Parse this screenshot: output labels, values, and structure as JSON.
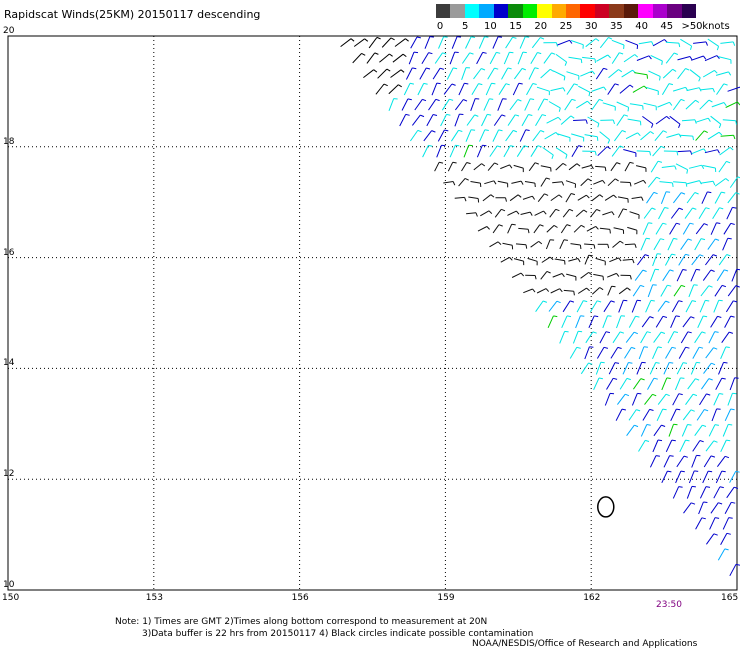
{
  "chart_data": {
    "type": "scatter",
    "title": "Rapidscat Winds(25KM) 20150117 descending",
    "xlim": [
      150,
      165
    ],
    "ylim": [
      10,
      20
    ],
    "x_ticks": [
      "150",
      "153",
      "156",
      "159",
      "162",
      "165"
    ],
    "y_ticks": [
      "10",
      "12",
      "14",
      "16",
      "18",
      "20"
    ],
    "grid": true,
    "legend": {
      "placement": "top-right",
      "unit": "knots",
      "labels": [
        "0",
        "5",
        "10",
        "15",
        "20",
        "25",
        "30",
        "35",
        "40",
        "45",
        ">50"
      ],
      "colors": [
        "#3c3c3c",
        "#9a9a9a",
        "#00ffff",
        "#00aaff",
        "#0000cc",
        "#0a8a0a",
        "#00ee00",
        "#ffff00",
        "#ffaa00",
        "#ff6600",
        "#ff0000",
        "#cc0022",
        "#8b3a1a",
        "#5a1a0a",
        "#ff00ff",
        "#aa00cc",
        "#6a0080",
        "#2a0050"
      ]
    },
    "swath_edge": [
      {
        "lon": 156.8,
        "lat": 20
      },
      {
        "lon": 165,
        "lat": 10.2
      }
    ],
    "contamination_circle": {
      "lon": 162.3,
      "lat": 11.5
    },
    "time_label": "23:50"
  },
  "notes": {
    "line1": "Note: 1) Times are GMT 2)Times along bottom correspond to measurement at 20N",
    "line2": "3)Data buffer is 22 hrs from 20150117 4) Black circles indicate possible contamination"
  },
  "credit": "NOAA/NESDIS/Office of Research and Applications"
}
